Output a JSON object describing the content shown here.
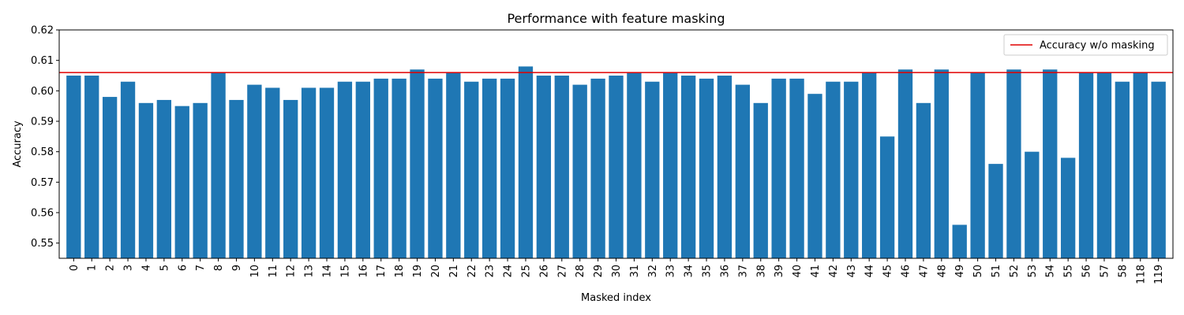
{
  "chart_data": {
    "type": "bar",
    "title": "Performance with feature masking",
    "xlabel": "Masked index",
    "ylabel": "Accuracy",
    "ylim": [
      0.545,
      0.62
    ],
    "yticks": [
      "0.55",
      "0.56",
      "0.57",
      "0.58",
      "0.59",
      "0.60",
      "0.61",
      "0.62"
    ],
    "categories": [
      "0",
      "1",
      "2",
      "3",
      "4",
      "5",
      "6",
      "7",
      "8",
      "9",
      "10",
      "11",
      "12",
      "13",
      "14",
      "15",
      "16",
      "17",
      "18",
      "19",
      "20",
      "21",
      "22",
      "23",
      "24",
      "25",
      "26",
      "27",
      "28",
      "29",
      "30",
      "31",
      "32",
      "33",
      "34",
      "35",
      "36",
      "37",
      "38",
      "39",
      "40",
      "41",
      "42",
      "43",
      "44",
      "45",
      "46",
      "47",
      "48",
      "49",
      "50",
      "51",
      "52",
      "53",
      "54",
      "55",
      "56",
      "57",
      "58",
      "118",
      "119"
    ],
    "values": [
      0.605,
      0.605,
      0.598,
      0.603,
      0.596,
      0.597,
      0.595,
      0.596,
      0.606,
      0.597,
      0.602,
      0.601,
      0.597,
      0.601,
      0.601,
      0.603,
      0.603,
      0.604,
      0.604,
      0.607,
      0.604,
      0.606,
      0.603,
      0.604,
      0.604,
      0.608,
      0.605,
      0.605,
      0.602,
      0.604,
      0.605,
      0.606,
      0.603,
      0.606,
      0.605,
      0.604,
      0.605,
      0.602,
      0.596,
      0.604,
      0.604,
      0.599,
      0.603,
      0.603,
      0.606,
      0.585,
      0.607,
      0.596,
      0.607,
      0.556,
      0.606,
      0.576,
      0.607,
      0.58,
      0.607,
      0.578,
      0.606,
      0.606,
      0.603,
      0.606,
      0.603
    ],
    "baseline": {
      "name": "Accuracy w/o masking",
      "value": 0.606,
      "color": "#e00000"
    },
    "bar_color": "#1f77b4",
    "legend_position": "top-right",
    "grid": false
  }
}
